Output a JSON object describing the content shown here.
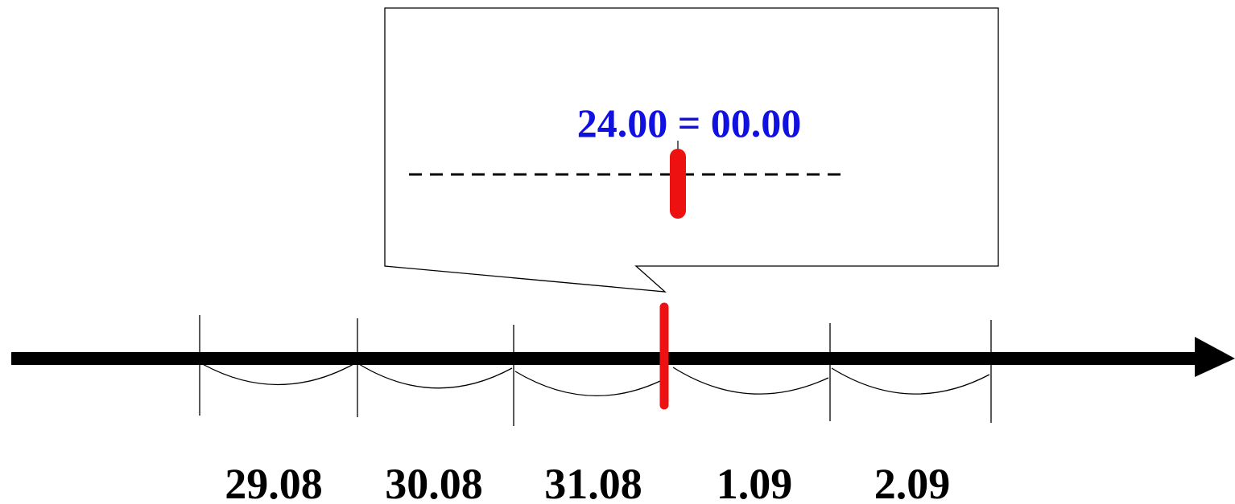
{
  "callout": {
    "text": "24.00 = 00.00",
    "text_color": "#1010e0"
  },
  "days": [
    {
      "label": "29.08"
    },
    {
      "label": "30.08"
    },
    {
      "label": "31.08"
    },
    {
      "label": "1.09"
    },
    {
      "label": "2.09"
    }
  ],
  "colors": {
    "axis": "#000000",
    "marker": "#ee1111",
    "dashed_line": "#000000"
  }
}
